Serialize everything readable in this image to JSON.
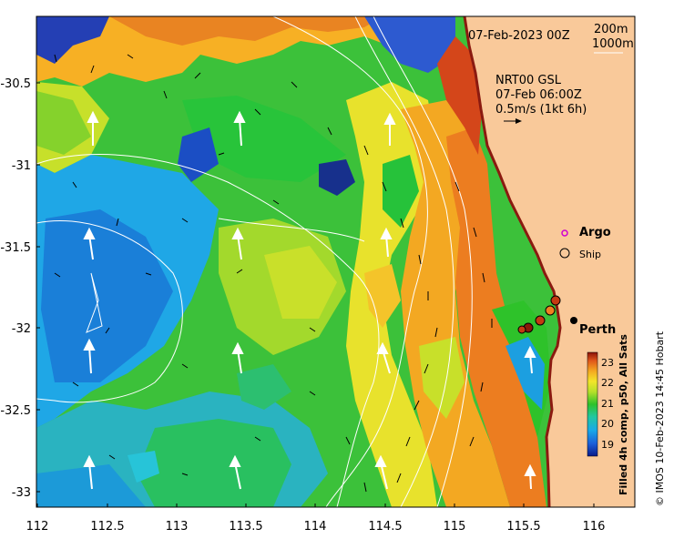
{
  "map": {
    "date_label": "07-Feb-2023 00Z",
    "contour_labels": [
      "200m",
      "1000m"
    ],
    "current_title": "NRT00 GSL",
    "current_time": "07-Feb 06:00Z",
    "current_scale": "0.5m/s (1kt 6h)",
    "legend": {
      "argo": "Argo",
      "ship": "Ship"
    },
    "place_label": "Perth",
    "colors": {
      "land": "#f9c99a",
      "argo_marker": "#d000d0",
      "ship_marker": "#000000",
      "coast_dark": "#8b1a10"
    }
  },
  "axes": {
    "x_ticks": [
      "112",
      "112.5",
      "113",
      "113.5",
      "114",
      "114.5",
      "115",
      "115.5",
      "116"
    ],
    "y_ticks": [
      "-30.5",
      "-31",
      "-31.5",
      "-32",
      "-32.5",
      "-33"
    ]
  },
  "colorbar": {
    "title": "Filled 4h comp, p50, All Sats",
    "ticks": [
      "23",
      "22",
      "21",
      "20",
      "19"
    ]
  },
  "credit": "© IMOS 10-Feb-2023 14:45 Hobart"
}
